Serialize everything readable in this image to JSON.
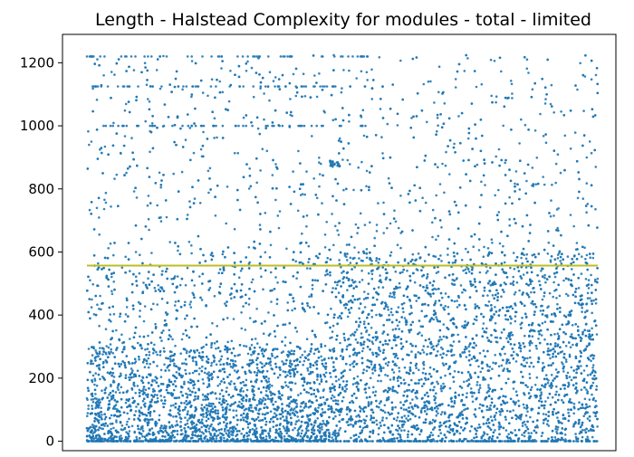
{
  "chart_data": {
    "type": "scatter",
    "title": "Length - Halstead Complexity for modules - total - limited",
    "xlabel": "",
    "ylabel": "",
    "ylim": [
      -30,
      1290
    ],
    "y_ticks": [
      0,
      200,
      400,
      600,
      800,
      1000,
      1200
    ],
    "x_ticks_shown": false,
    "grid": false,
    "legend": "none",
    "series": [
      {
        "kind": "scatter",
        "color": "#1f77b4",
        "point_count_approx": 20000,
        "x_range": [
          0,
          1
        ],
        "y_range": [
          0,
          1225
        ],
        "distribution": {
          "dense_band_max": 300,
          "left_segment_end": 0.49,
          "left_segment_density_above_300": "sparse",
          "right_segment_density_above_300": "moderate",
          "notable_bands": [
            1000,
            1125,
            1220
          ],
          "cluster": {
            "x": 0.485,
            "y": 880
          }
        }
      },
      {
        "kind": "line",
        "color": "#bcbd22",
        "x": [
          0,
          1
        ],
        "y": [
          557,
          557
        ],
        "note_visible": false
      }
    ]
  }
}
